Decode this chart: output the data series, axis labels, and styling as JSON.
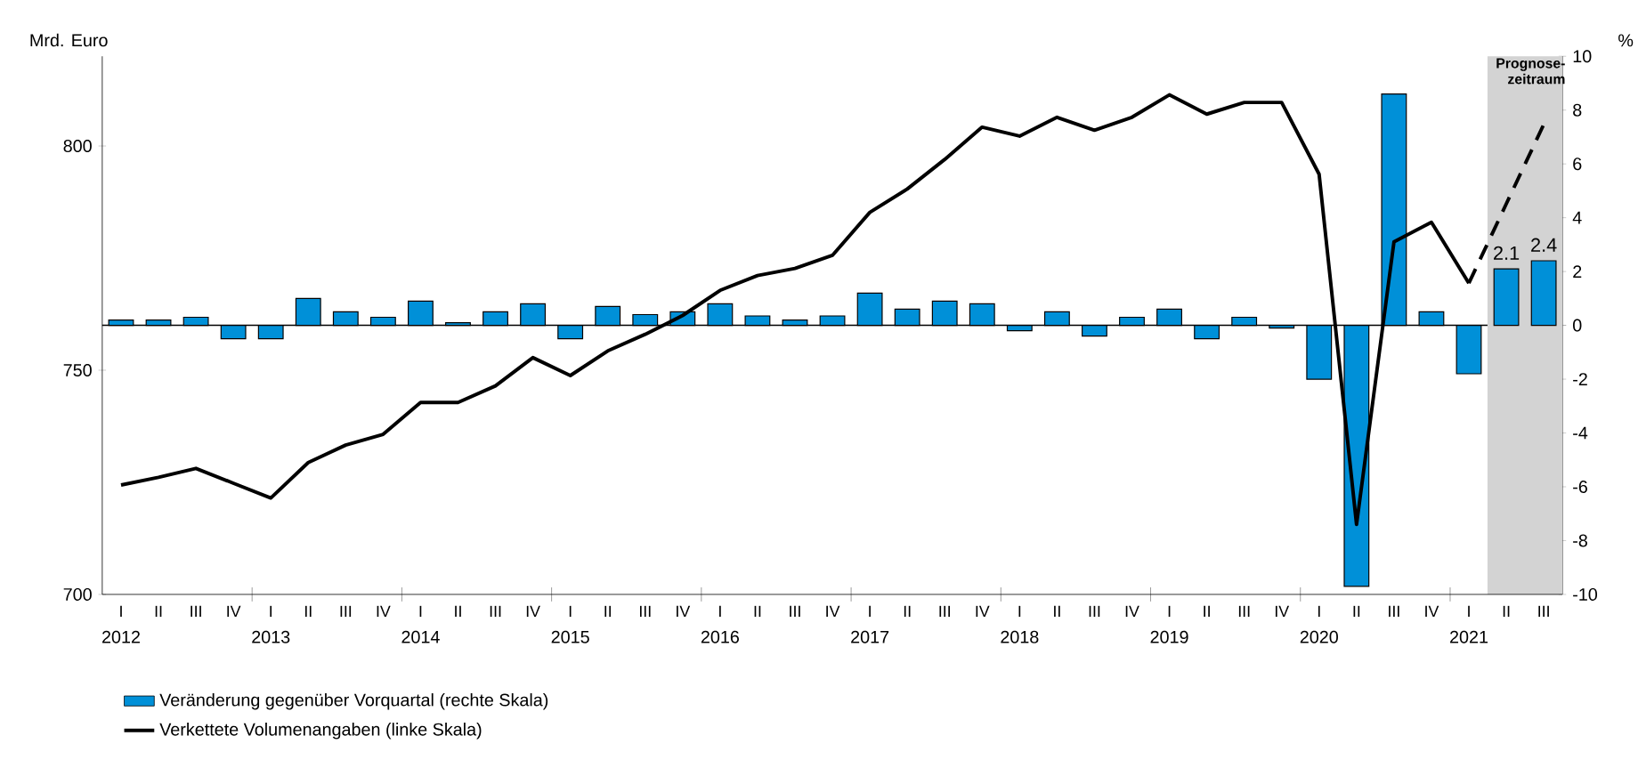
{
  "chart_data": {
    "type": "bar",
    "ylabel": "Mrd. Euro",
    "y2label": "%",
    "x": [
      "2012-01",
      "2012-04",
      "2012-07",
      "2012-10",
      "2013-01",
      "2013-04",
      "2013-07",
      "2013-10",
      "2014-01",
      "2014-04",
      "2014-07",
      "2014-10",
      "2015-01",
      "2015-04",
      "2015-07",
      "2015-10",
      "2016-01",
      "2016-04",
      "2016-07",
      "2016-10",
      "2017-01",
      "2017-04",
      "2017-07",
      "2017-10",
      "2018-01",
      "2018-04",
      "2018-07",
      "2018-10",
      "2019-01",
      "2019-04",
      "2019-07",
      "2019-10",
      "2020-01",
      "2020-04",
      "2020-07",
      "2020-10",
      "2021-01",
      "2021-04",
      "2021-07"
    ],
    "xlim": [
      "2011-11-16",
      "2021-08-16"
    ],
    "xticks": [
      "2012",
      "2013",
      "2014",
      "2015",
      "2016",
      "2017",
      "2018",
      "2019",
      "2020",
      "2021"
    ],
    "annotations": [
      "I",
      "II",
      "III",
      "IV",
      "I",
      "II",
      "III",
      "IV",
      "I",
      "II",
      "III",
      "IV",
      "I",
      "II",
      "III",
      "IV",
      "I",
      "II",
      "III",
      "IV",
      "I",
      "II",
      "III",
      "IV",
      "I",
      "II",
      "III",
      "IV",
      "I",
      "II",
      "III",
      "IV",
      "I",
      "II",
      "III",
      "IV",
      "I",
      "II",
      "III"
    ],
    "series": [
      {
        "name": "Veränderung gegenüber Vorquartal (rechte Skala)",
        "axis": "y2",
        "color": "#0090d8",
        "values": [
          0.2,
          0.2,
          0.3,
          -0.5,
          -0.5,
          1.0,
          0.5,
          0.3,
          0.9,
          0.1,
          0.5,
          0.8,
          -0.5,
          0.7,
          0.4,
          0.5,
          0.8,
          0.35,
          0.2,
          0.35,
          1.2,
          0.6,
          0.9,
          0.8,
          -0.2,
          0.5,
          -0.4,
          0.3,
          0.6,
          -0.5,
          0.3,
          -0.1,
          -2.0,
          -9.7,
          8.6,
          0.5,
          -1.8,
          2.1,
          2.4
        ],
        "value_labels": [
          null,
          null,
          null,
          null,
          null,
          null,
          null,
          null,
          null,
          null,
          null,
          null,
          null,
          null,
          null,
          null,
          null,
          null,
          null,
          null,
          null,
          null,
          null,
          null,
          null,
          null,
          null,
          null,
          null,
          null,
          null,
          null,
          null,
          null,
          null,
          null,
          null,
          "2.1",
          "2.4"
        ]
      },
      {
        "name": "Verkettete Volumenangaben (linke Skala)",
        "type": "line",
        "color": "#000000",
        "line_style": "solid",
        "values": [
          724.4,
          726.1,
          728.1,
          724.8,
          721.5,
          729.4,
          733.3,
          735.7,
          742.8,
          742.8,
          746.5,
          752.8,
          748.8,
          754.3,
          758,
          762.2,
          767.8,
          771.1,
          772.7,
          775.6,
          785.2,
          790.4,
          797,
          804.2,
          802.2,
          806.4,
          803.5,
          806.4,
          811.4,
          807.1,
          809.7,
          809.7,
          793.7,
          715.6,
          778.6,
          783,
          769.4,
          null,
          null
        ]
      },
      {
        "type": "line",
        "color": "#000000",
        "line_style": "dashed",
        "values": [
          null,
          null,
          null,
          null,
          null,
          null,
          null,
          null,
          null,
          null,
          null,
          null,
          null,
          null,
          null,
          null,
          null,
          null,
          null,
          null,
          null,
          null,
          null,
          null,
          null,
          null,
          null,
          null,
          null,
          null,
          null,
          null,
          null,
          null,
          null,
          null,
          769.4,
          787.1,
          804.8
        ]
      }
    ],
    "ylim": [
      700,
      820
    ],
    "yticks": [
      700,
      750,
      800
    ],
    "y2lim": [
      -10,
      10
    ],
    "y2ticks": [
      -10,
      -8,
      -6,
      -4,
      -2,
      0,
      2,
      4,
      6,
      8,
      10
    ],
    "bands": [
      {
        "axis": "x",
        "from": "2021-02-16",
        "to": "2021-08-16",
        "label": "Prognose-zeitraum",
        "color": "#d3d3d3"
      }
    ],
    "legend": "bottom"
  }
}
